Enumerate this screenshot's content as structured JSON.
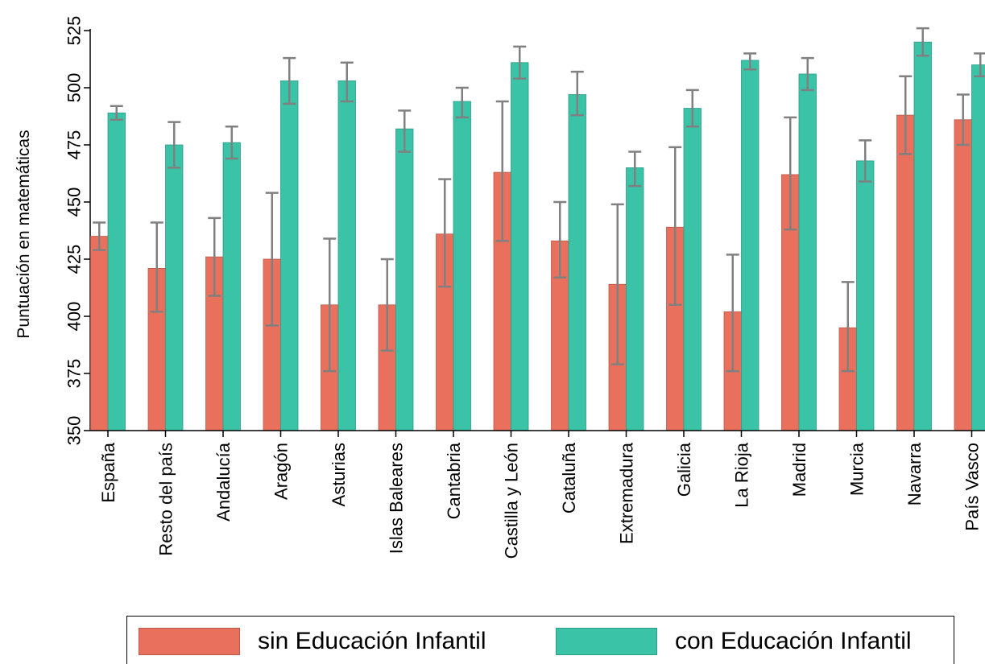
{
  "chart_data": {
    "type": "bar",
    "ylabel": "Puntuación en matemáticas",
    "xlabel": "",
    "ylim": [
      350,
      525
    ],
    "yticks": [
      350,
      375,
      400,
      425,
      450,
      475,
      500,
      525
    ],
    "grid": false,
    "legend_placement": "bottom",
    "categories": [
      "España",
      "Resto del país",
      "Andalucía",
      "Aragón",
      "Asturias",
      "Islas Baleares",
      "Cantabria",
      "Castilla y León",
      "Cataluña",
      "Extremadura",
      "Galicia",
      "La Rioja",
      "Madrid",
      "Murcia",
      "Navarra",
      "País Vasco"
    ],
    "series": [
      {
        "name": "sin Educación Infantil",
        "color": "#e8705c",
        "values": [
          435,
          421,
          426,
          425,
          405,
          405,
          436,
          463,
          433,
          414,
          439,
          402,
          462,
          395,
          488,
          486
        ],
        "ci_low": [
          429,
          402,
          409,
          396,
          376,
          385,
          413,
          433,
          417,
          379,
          405,
          376,
          438,
          376,
          471,
          475
        ],
        "ci_high": [
          441,
          441,
          443,
          454,
          434,
          425,
          460,
          494,
          450,
          449,
          474,
          427,
          487,
          415,
          505,
          497
        ]
      },
      {
        "name": "con Educación Infantil",
        "color": "#3ac3a6",
        "values": [
          489,
          475,
          476,
          503,
          503,
          482,
          494,
          511,
          497,
          465,
          491,
          512,
          506,
          468,
          520,
          510
        ],
        "ci_low": [
          486,
          465,
          469,
          493,
          494,
          472,
          487,
          504,
          488,
          457,
          483,
          508,
          499,
          459,
          514,
          505
        ],
        "ci_high": [
          492,
          485,
          483,
          513,
          511,
          490,
          500,
          518,
          507,
          472,
          499,
          515,
          513,
          477,
          526,
          515
        ]
      }
    ]
  }
}
